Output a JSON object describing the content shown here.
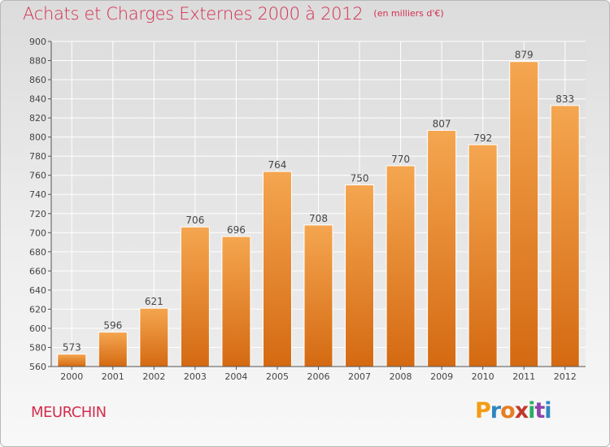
{
  "title": "Achats et Charges Externes 2000 à 2012",
  "unit_note": "(en milliers d'€)",
  "location": "MEURCHIN",
  "brand": "Proxiti",
  "brand_colors": [
    "#f39c12",
    "#2e86c1",
    "#e67e22",
    "#c0392b",
    "#27ae60",
    "#8e44ad",
    "#2e86c1"
  ],
  "colors": {
    "bar_top": "#f5a650",
    "bar_bottom": "#d46a12",
    "title": "#d32d4e",
    "grid": "#ffffff"
  },
  "chart_data": {
    "type": "bar",
    "categories": [
      "2000",
      "2001",
      "2002",
      "2003",
      "2004",
      "2005",
      "2006",
      "2007",
      "2008",
      "2009",
      "2010",
      "2011",
      "2012"
    ],
    "values": [
      573,
      596,
      621,
      706,
      696,
      764,
      708,
      750,
      770,
      807,
      792,
      879,
      833
    ],
    "ylim": [
      560,
      900
    ],
    "yticks": [
      560,
      580,
      600,
      620,
      640,
      660,
      680,
      700,
      720,
      740,
      760,
      780,
      800,
      820,
      840,
      860,
      880,
      900
    ],
    "grid": true,
    "data_labels": true
  }
}
